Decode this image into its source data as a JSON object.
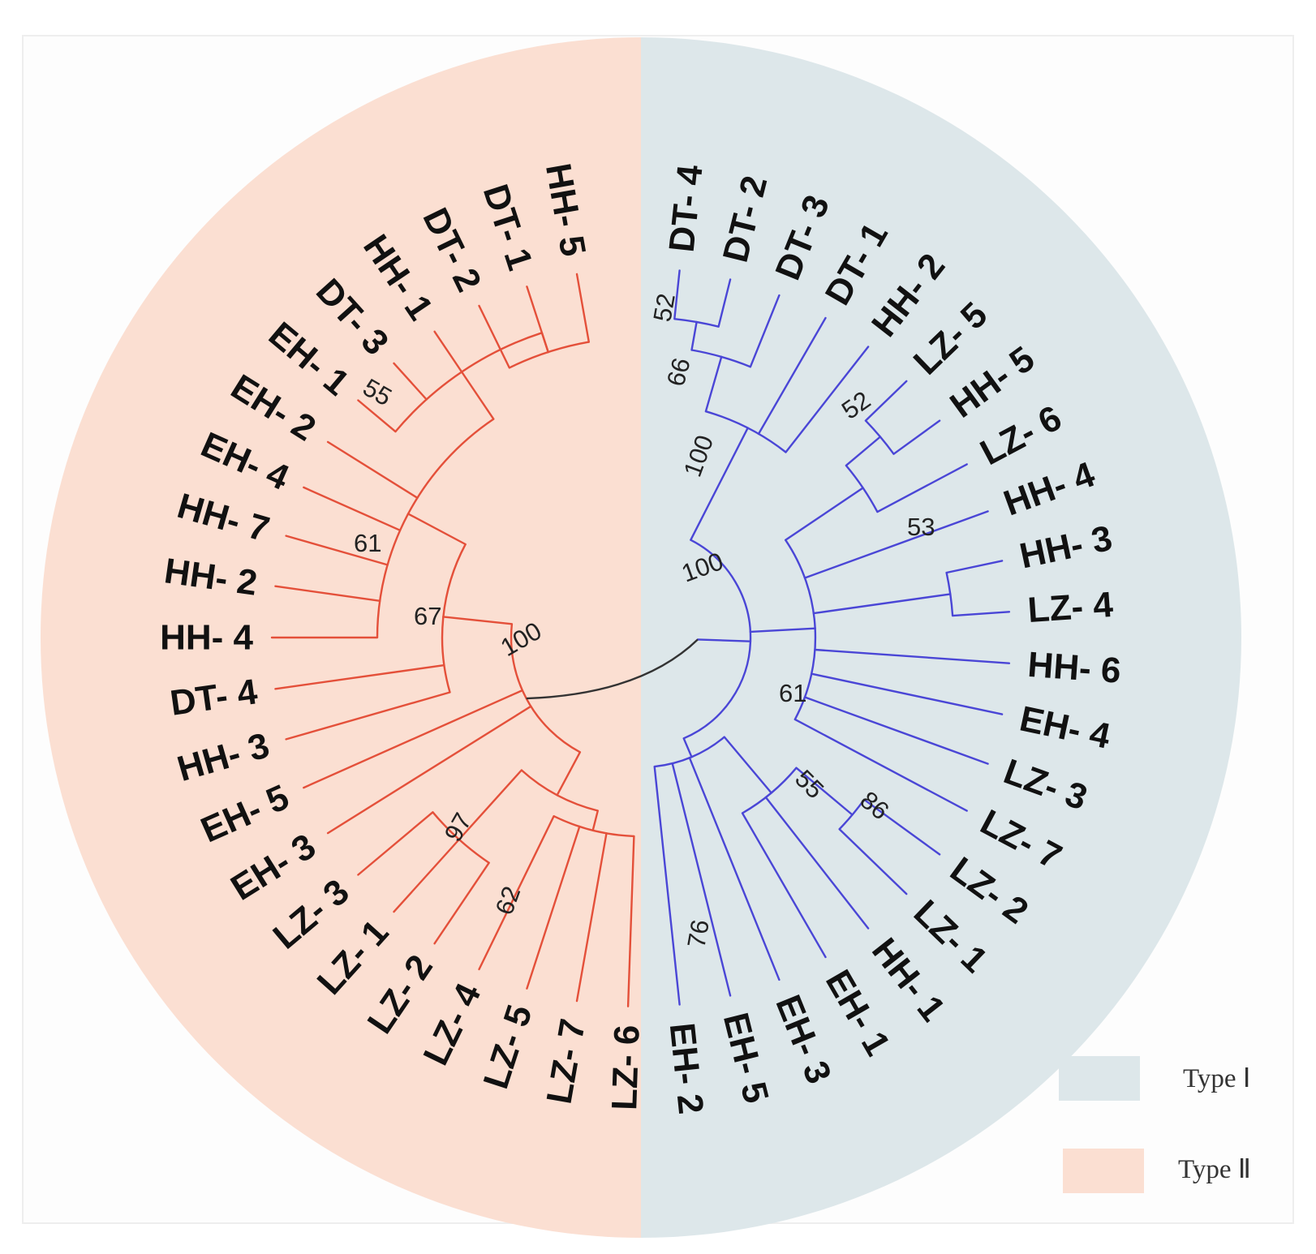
{
  "legend": {
    "type1": {
      "label": "Type Ⅰ",
      "color": "#dde7ea"
    },
    "type2": {
      "label": "Type Ⅱ",
      "color": "#fbdfd2"
    }
  },
  "colors": {
    "type1_branch": "#4a46d6",
    "type2_branch": "#e4503a",
    "root_branch": "#333333"
  },
  "type2_leaves": [
    "HH- 5",
    "DT- 1",
    "DT- 2",
    "HH- 1",
    "DT- 3",
    "EH- 1",
    "EH- 2",
    "EH- 4",
    "HH- 7",
    "HH- 2",
    "HH- 4",
    "DT- 4",
    "HH- 3",
    "EH- 5",
    "EH- 3",
    "LZ- 3",
    "LZ- 1",
    "LZ- 2",
    "LZ- 4",
    "LZ- 5",
    "LZ- 7",
    "LZ- 6"
  ],
  "type1_leaves": [
    "DT- 4",
    "DT- 2",
    "DT- 3",
    "DT- 1",
    "HH- 2",
    "LZ- 5",
    "HH- 5",
    "LZ- 6",
    "HH- 4",
    "HH- 3",
    "LZ- 4",
    "HH- 6",
    "EH- 4",
    "LZ- 3",
    "LZ- 7",
    "LZ- 2",
    "LZ- 1",
    "HH- 1",
    "EH- 1",
    "EH- 3",
    "EH- 5",
    "EH- 2"
  ],
  "bootstrap": {
    "t2_root": "100",
    "t2_a": "67",
    "t2_b": "61",
    "t2_c": "55",
    "t2_lz": "97",
    "t2_lz2": "62",
    "t1_root": "100",
    "t1_dt": "100",
    "t1_dt2": "66",
    "t1_dt3": "52",
    "t1_m": "61",
    "t1_hh": "52",
    "t1_hh3": "53",
    "t1_eh": "55",
    "t1_eh2": "86",
    "t1_lz": "76"
  }
}
